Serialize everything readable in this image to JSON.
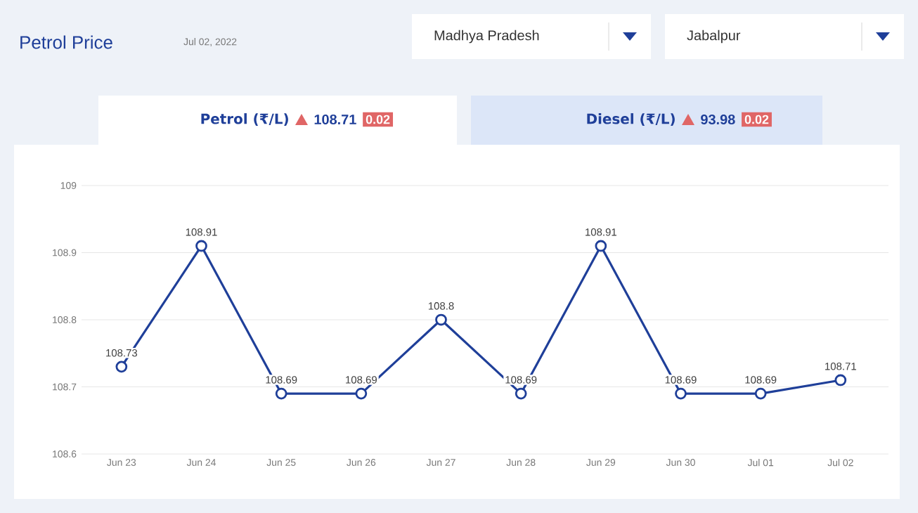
{
  "chart_data": {
    "type": "line",
    "title": "Petrol Price",
    "subtitle": "Jul 02, 2022",
    "categories": [
      "Jun 23",
      "Jun 24",
      "Jun 25",
      "Jun 26",
      "Jun 27",
      "Jun 28",
      "Jun 29",
      "Jun 30",
      "Jul 01",
      "Jul 02"
    ],
    "series": [
      {
        "color": "#1f3f99",
        "values": [
          108.73,
          108.91,
          108.69,
          108.69,
          108.8,
          108.69,
          108.91,
          108.69,
          108.69,
          108.71
        ]
      }
    ],
    "ylim": [
      108.6,
      109
    ],
    "yticks": [
      108.6,
      108.7,
      108.8,
      108.9,
      109
    ],
    "grid": "y",
    "marker": "circle",
    "data_labels": true,
    "annotations": [
      "Madhya Pradesh",
      "Jabalpur",
      "Petrol (₹/L)",
      "108.71",
      "0.02",
      "Diesel (₹/L)",
      "93.98",
      "0.02"
    ]
  }
}
